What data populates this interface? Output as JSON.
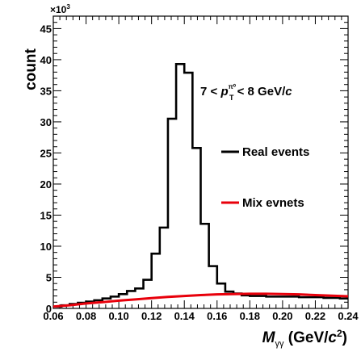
{
  "chart_data": {
    "type": "line",
    "xlabel_main": "M",
    "xlabel_sub": "γγ",
    "xlabel_unit_open": " (GeV/",
    "xlabel_unit_var": "c",
    "xlabel_unit_pow": "2",
    "xlabel_unit_close": ")",
    "ylabel": "count",
    "y_multiplier_base": "×10",
    "y_multiplier_exp": "3",
    "xlim": [
      0.06,
      0.24
    ],
    "ylim": [
      0,
      47
    ],
    "x_ticks": [
      "0.06",
      "0.08",
      "0.10",
      "0.12",
      "0.14",
      "0.16",
      "0.18",
      "0.20",
      "0.22",
      "0.24"
    ],
    "y_ticks": [
      "0",
      "5",
      "10",
      "15",
      "20",
      "25",
      "30",
      "35",
      "40",
      "45"
    ],
    "annotation": {
      "prefix": "7 < ",
      "var": "p",
      "sup": "π⁰",
      "sub": "T",
      "suffix": " < 8 GeV/",
      "unit_var": "c"
    },
    "series": [
      {
        "name": "Real events",
        "color": "#000000",
        "style": "step",
        "bin_width": 0.005,
        "x": [
          0.06,
          0.065,
          0.07,
          0.075,
          0.08,
          0.085,
          0.09,
          0.095,
          0.1,
          0.105,
          0.11,
          0.115,
          0.12,
          0.125,
          0.13,
          0.135,
          0.14,
          0.145,
          0.15,
          0.155,
          0.16,
          0.165,
          0.17,
          0.175,
          0.18,
          0.185,
          0.19,
          0.195,
          0.2,
          0.205,
          0.21,
          0.215,
          0.22,
          0.225,
          0.23,
          0.235
        ],
        "values": [
          0.3,
          0.5,
          0.7,
          0.9,
          1.1,
          1.3,
          1.6,
          1.9,
          2.3,
          2.8,
          3.2,
          4.6,
          8.8,
          13.0,
          30.5,
          39.3,
          37.9,
          25.8,
          13.6,
          6.8,
          4.0,
          2.7,
          2.4,
          2.1,
          2.0,
          2.0,
          1.9,
          1.9,
          1.9,
          1.9,
          1.8,
          1.8,
          1.8,
          1.7,
          1.7,
          1.6
        ]
      },
      {
        "name": "Mix evnets",
        "color": "#e8000b",
        "style": "line",
        "x": [
          0.06,
          0.07,
          0.08,
          0.09,
          0.1,
          0.11,
          0.12,
          0.13,
          0.14,
          0.15,
          0.16,
          0.17,
          0.18,
          0.19,
          0.2,
          0.21,
          0.22,
          0.23,
          0.24
        ],
        "values": [
          0.3,
          0.5,
          0.8,
          1.0,
          1.25,
          1.45,
          1.65,
          1.85,
          2.0,
          2.15,
          2.25,
          2.3,
          2.35,
          2.35,
          2.3,
          2.25,
          2.15,
          2.05,
          1.95
        ]
      }
    ]
  }
}
